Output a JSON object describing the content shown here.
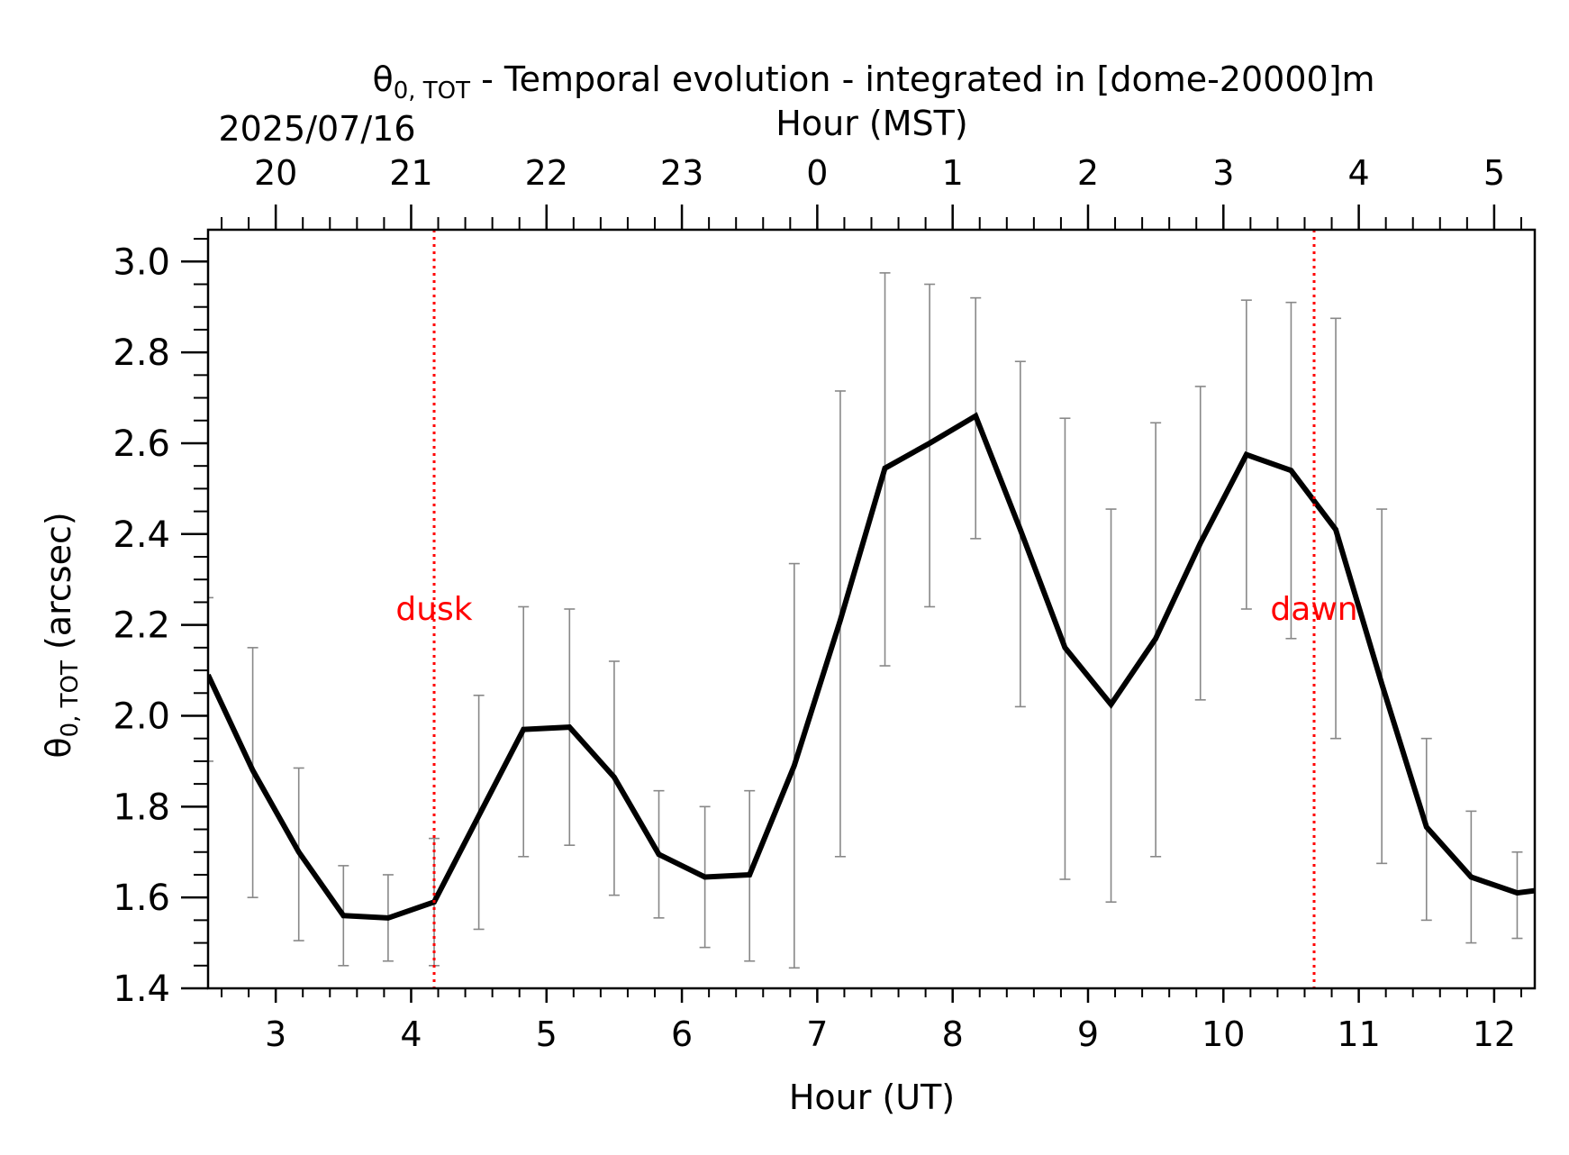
{
  "chart_data": {
    "type": "line",
    "title_prefix": "θ",
    "title_sub": "0, TOT",
    "title_rest": " - Temporal evolution - integrated in [dome-20000]m",
    "date_label": "2025/07/16",
    "xlabel": "Hour (UT)",
    "top_xlabel": "Hour (MST)",
    "ylabel_prefix": "θ",
    "ylabel_sub": "0, TOT",
    "ylabel_rest": " (arcsec)",
    "xlim": [
      2.5,
      12.3
    ],
    "ylim": [
      1.4,
      3.07
    ],
    "x_ticks": [
      3,
      4,
      5,
      6,
      7,
      8,
      9,
      10,
      11,
      12
    ],
    "x_tick_labels": [
      "3",
      "4",
      "5",
      "6",
      "7",
      "8",
      "9",
      "10",
      "11",
      "12"
    ],
    "top_ticks_ut": [
      3,
      4,
      5,
      6,
      7,
      8,
      9,
      10,
      11,
      12
    ],
    "top_tick_labels": [
      "20",
      "21",
      "22",
      "23",
      "0",
      "1",
      "2",
      "3",
      "4",
      "5"
    ],
    "y_ticks": [
      1.4,
      1.6,
      1.8,
      2.0,
      2.2,
      2.4,
      2.6,
      2.8,
      3.0
    ],
    "y_tick_labels": [
      "1.4",
      "1.6",
      "1.8",
      "2.0",
      "2.2",
      "2.4",
      "2.6",
      "2.8",
      "3.0"
    ],
    "series": [
      {
        "x": [
          2.5,
          2.83,
          3.17,
          3.5,
          3.83,
          4.17,
          4.5,
          4.83,
          5.17,
          5.5,
          5.83,
          6.17,
          6.5,
          6.83,
          7.17,
          7.5,
          7.83,
          8.17,
          8.5,
          8.83,
          9.17,
          9.5,
          9.83,
          10.17,
          10.5,
          10.83,
          11.17,
          11.5,
          11.83,
          12.17,
          12.3
        ],
        "y": [
          2.09,
          1.88,
          1.7,
          1.56,
          1.555,
          1.59,
          1.78,
          1.97,
          1.975,
          1.865,
          1.695,
          1.645,
          1.65,
          1.89,
          2.21,
          2.545,
          2.6,
          2.66,
          2.41,
          2.15,
          2.025,
          2.17,
          2.38,
          2.575,
          2.54,
          2.41,
          2.07,
          1.755,
          1.645,
          1.61,
          1.615
        ],
        "err_low": [
          1.9,
          1.6,
          1.505,
          1.45,
          1.46,
          1.45,
          1.53,
          1.69,
          1.715,
          1.605,
          1.555,
          1.49,
          1.46,
          1.445,
          1.69,
          2.11,
          2.24,
          2.39,
          2.02,
          1.64,
          1.59,
          1.69,
          2.035,
          2.235,
          2.17,
          1.95,
          1.675,
          1.55,
          1.5,
          1.51,
          null
        ],
        "err_high": [
          2.26,
          2.15,
          1.885,
          1.67,
          1.65,
          1.73,
          2.045,
          2.24,
          2.235,
          2.12,
          1.835,
          1.8,
          1.835,
          2.335,
          2.715,
          2.975,
          2.95,
          2.92,
          2.78,
          2.655,
          2.455,
          2.645,
          2.725,
          2.915,
          2.91,
          2.875,
          2.455,
          1.95,
          1.79,
          1.7,
          null
        ],
        "color": "#000000",
        "err_color": "#888888"
      }
    ],
    "markers": [
      {
        "label": "dusk",
        "x": 4.17,
        "y": 2.235,
        "color": "#ff0000"
      },
      {
        "label": "dawn",
        "x": 10.67,
        "y": 2.235,
        "color": "#ff0000"
      }
    ],
    "grid": false
  }
}
